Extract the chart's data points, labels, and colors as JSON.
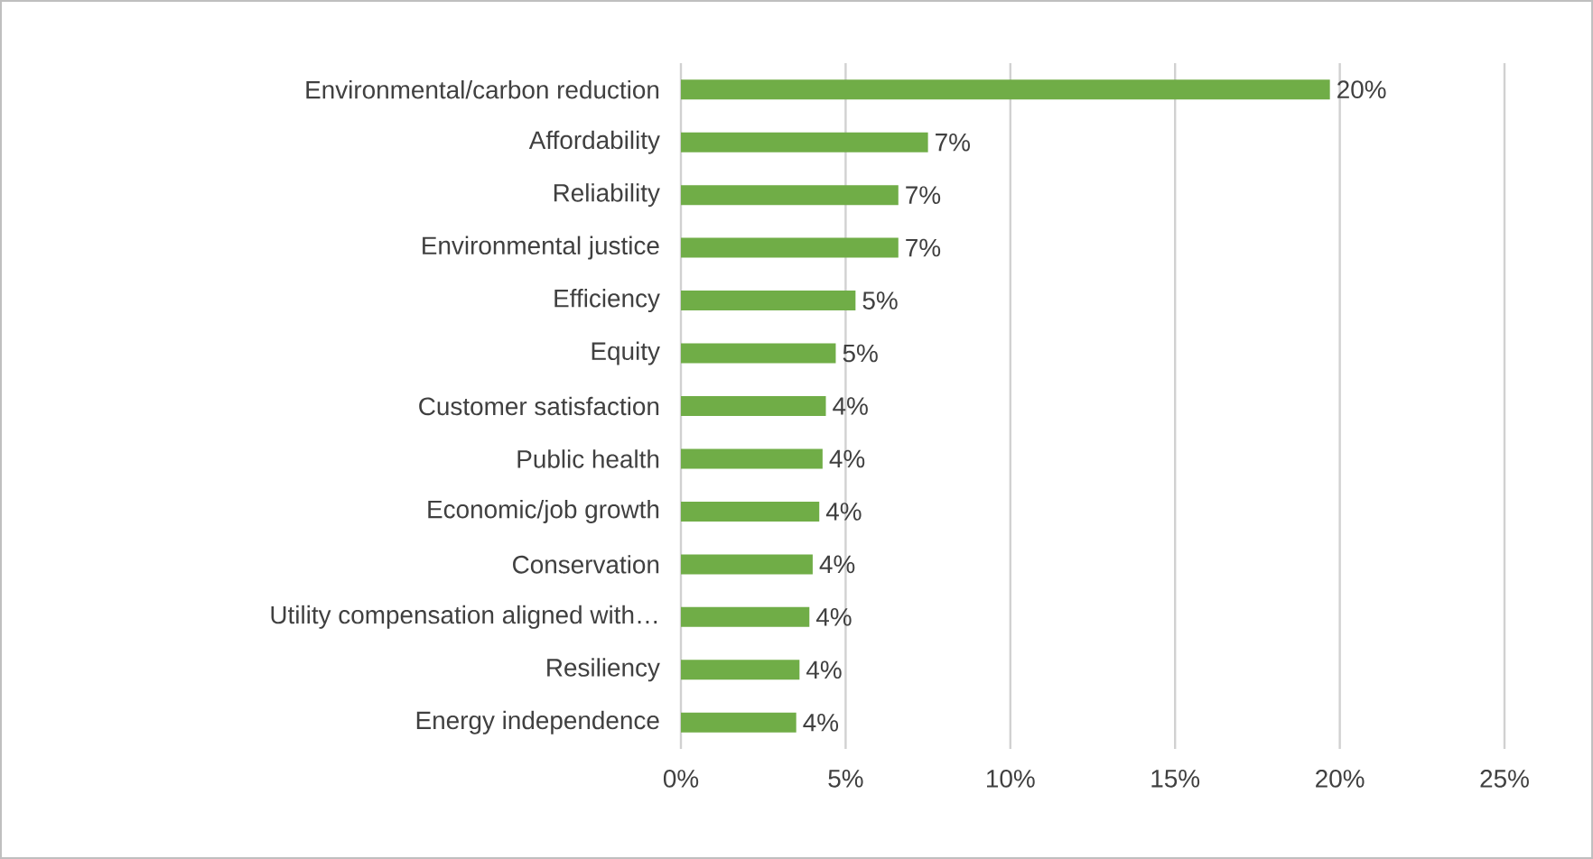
{
  "chart_data": {
    "type": "bar",
    "orientation": "horizontal",
    "categories": [
      "Environmental/carbon reduction",
      "Affordability",
      "Reliability",
      "Environmental justice",
      "Efficiency",
      "Equity",
      "Customer satisfaction",
      "Public health",
      "Economic/job growth",
      "Conservation",
      "Utility compensation aligned with…",
      "Resiliency",
      "Energy independence"
    ],
    "values": [
      19.7,
      7.5,
      6.6,
      6.6,
      5.3,
      4.7,
      4.4,
      4.3,
      4.2,
      4.0,
      3.9,
      3.6,
      3.5
    ],
    "value_labels": [
      "20%",
      "7%",
      "7%",
      "7%",
      "5%",
      "5%",
      "4%",
      "4%",
      "4%",
      "4%",
      "4%",
      "4%",
      "4%"
    ],
    "color": "#70ad47",
    "xlim": [
      0,
      25
    ],
    "xticks": [
      {
        "value": 0,
        "label": "0%"
      },
      {
        "value": 5,
        "label": "5%"
      },
      {
        "value": 10,
        "label": "10%"
      },
      {
        "value": 15,
        "label": "15%"
      },
      {
        "value": 20,
        "label": "20%"
      },
      {
        "value": 25,
        "label": "25%"
      }
    ],
    "grid": "x"
  }
}
